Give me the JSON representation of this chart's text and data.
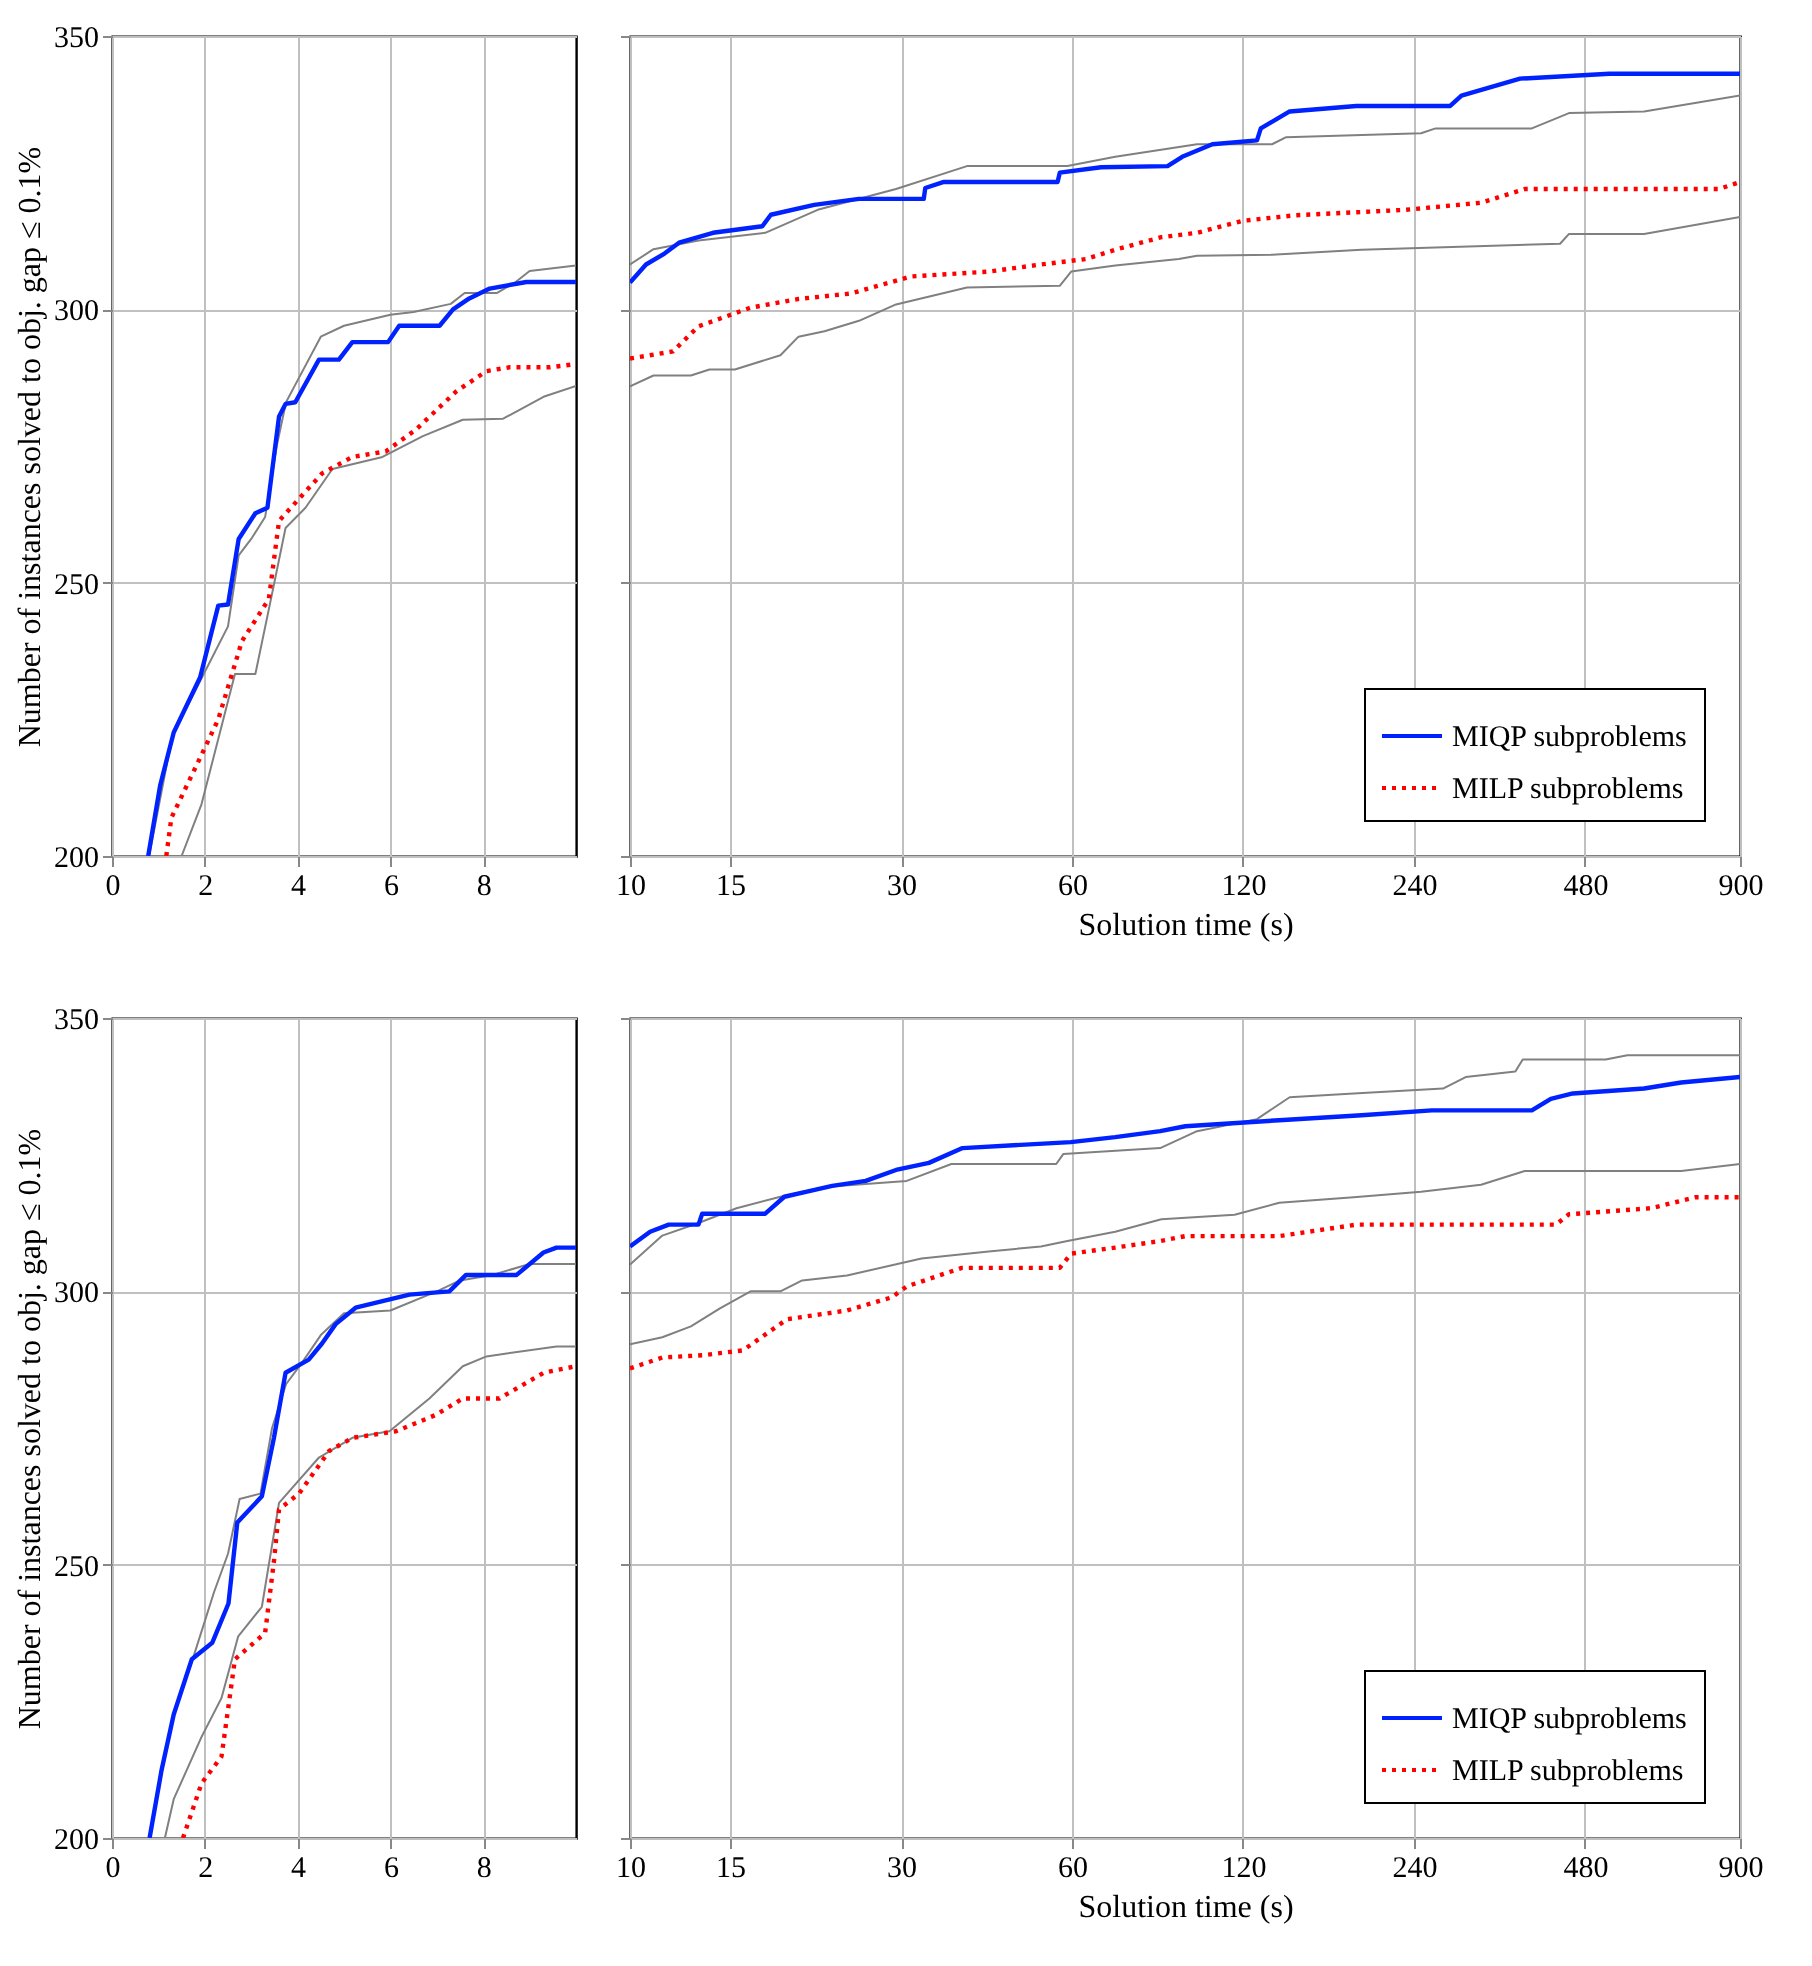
{
  "chart_data": [
    {
      "type": "line",
      "ylabel": "Number of instances solved to obj. gap ≤ 0.1%",
      "xlim": [
        0,
        10
      ],
      "xticks": [
        0,
        2,
        4,
        6,
        8
      ],
      "ylim": [
        200,
        350
      ],
      "yticks": [
        200,
        250,
        300,
        350
      ],
      "grid": true,
      "series": [
        {
          "color": "#808080",
          "line_style": "solid",
          "x": [
            0.8,
            1.3,
            1.9,
            2.5,
            2.73,
            3.0,
            3.3,
            3.55,
            3.75,
            4.0,
            4.5,
            5.0,
            5.5,
            6.0,
            6.5,
            7.3,
            7.6,
            8.3,
            8.7,
            9.0,
            10
          ],
          "values": [
            200,
            222,
            232,
            242,
            255,
            258,
            262,
            275,
            283,
            287,
            295,
            297,
            298,
            299,
            299.5,
            301,
            303,
            303,
            305,
            307,
            308
          ]
        },
        {
          "color": "#808080",
          "line_style": "solid",
          "x": [
            1.5,
            1.93,
            2.65,
            3.09,
            3.45,
            3.74,
            4.17,
            4.75,
            5.83,
            6.7,
            7.56,
            8.43,
            9.3,
            10
          ],
          "values": [
            200,
            209.5,
            233.3,
            233.3,
            248,
            260,
            263.7,
            270.8,
            273,
            276.8,
            279.8,
            280,
            284,
            286
          ]
        },
        {
          "color": "#0022ff",
          "line_style": "solid",
          "x": [
            0.78,
            1.04,
            1.33,
            1.9,
            2.29,
            2.5,
            2.73,
            3.09,
            3.35,
            3.6,
            3.74,
            3.95,
            4.46,
            4.89,
            5.18,
            5.95,
            6.19,
            7.06,
            7.35,
            7.7,
            8.14,
            8.93,
            10
          ],
          "values": [
            200,
            213,
            222.6,
            232.7,
            245.8,
            246,
            258,
            262.7,
            263.7,
            280.4,
            282.7,
            283,
            290.8,
            290.8,
            294,
            294,
            297,
            297,
            300,
            302,
            303.8,
            305,
            305
          ]
        },
        {
          "color": "#ff0000",
          "line_style": "dotted",
          "x": [
            1.17,
            1.28,
            1.93,
            2.29,
            2.8,
            3.38,
            3.6,
            4.1,
            4.53,
            5.18,
            5.9,
            6.55,
            7.42,
            8.07,
            8.57,
            9.44,
            10
          ],
          "values": [
            200,
            207,
            218.5,
            225,
            239.3,
            247,
            261.3,
            266,
            270,
            273,
            274,
            278,
            285,
            288.7,
            289.4,
            289.4,
            290
          ]
        }
      ]
    },
    {
      "type": "line",
      "xlabel": "Solution time (s)",
      "log": "x",
      "xlim": [
        10,
        900
      ],
      "xticks": [
        10,
        15,
        30,
        60,
        120,
        240,
        480,
        900
      ],
      "ylim": [
        200,
        350
      ],
      "yticks": [
        200,
        250,
        300,
        350
      ],
      "tick_labels": "x",
      "grid": true,
      "legend": "bottom right",
      "series": [
        {
          "color": "#808080",
          "line_style": "solid",
          "x": [
            10,
            11,
            13.2,
            17.3,
            21.4,
            29.4,
            39.2,
            58.9,
            71.5,
            99.6,
            135,
            143,
            247,
            262,
            387,
            450,
            610,
            900
          ],
          "values": [
            308.2,
            311,
            312.6,
            314,
            318.2,
            322,
            326.2,
            326.2,
            327.9,
            330.2,
            330.2,
            331.5,
            332.2,
            333.1,
            333.1,
            335.9,
            336.2,
            339.1
          ]
        },
        {
          "color": "#808080",
          "line_style": "solid",
          "x": [
            10,
            11,
            12.8,
            13.8,
            15.3,
            18.4,
            19.8,
            22,
            25.3,
            29.4,
            39.2,
            57.1,
            59.8,
            71.5,
            92.5,
            99.6,
            135,
            194,
            434,
            450,
            610,
            900
          ],
          "values": [
            285.9,
            287.9,
            287.9,
            289,
            289,
            291.6,
            295,
            296,
            297.9,
            300.9,
            304,
            304.3,
            306.9,
            308,
            309.2,
            309.8,
            310,
            310.9,
            312,
            313.8,
            313.8,
            316.9
          ]
        },
        {
          "name": "MIQP subproblems",
          "color": "#0022ff",
          "line_style": "solid",
          "x": [
            10,
            10.67,
            11.5,
            12.2,
            14,
            17.1,
            17.7,
            21.1,
            25.3,
            32.9,
            33.1,
            35.7,
            56.6,
            57.1,
            67.5,
            88.4,
            93.8,
            106,
            127,
            129,
            145,
            190,
            278,
            291,
            369,
            530,
            900
          ],
          "values": [
            304.9,
            308.2,
            310.2,
            312.2,
            314,
            315.2,
            317.3,
            319.1,
            320.2,
            320.2,
            322.2,
            323.3,
            323.3,
            325,
            326,
            326.2,
            327.9,
            330.2,
            330.9,
            333.1,
            336.2,
            337.2,
            337.2,
            339.1,
            342.2,
            343.1,
            343.1
          ]
        },
        {
          "name": "MILP subproblems",
          "color": "#ff0000",
          "line_style": "dotted",
          "x": [
            10,
            11.9,
            13.2,
            16.3,
            19.8,
            24.5,
            31.2,
            42.8,
            52.9,
            63.5,
            71.5,
            86.2,
            99.6,
            120,
            148,
            232,
            315,
            376,
            826,
            900
          ],
          "values": [
            291,
            292.3,
            296.9,
            300.3,
            301.9,
            302.9,
            306,
            306.9,
            308.2,
            309.2,
            310.9,
            313.2,
            314,
            316.2,
            317.2,
            318.2,
            319.5,
            322,
            322,
            323.3
          ]
        }
      ]
    },
    {
      "type": "line",
      "ylabel": "Number of instances solved to obj. gap ≤ 0.1%",
      "xlim": [
        0,
        10
      ],
      "xticks": [
        0,
        2,
        4,
        6,
        8
      ],
      "ylim": [
        200,
        350
      ],
      "yticks": [
        200,
        250,
        300,
        350
      ],
      "grid": true,
      "series": [
        {
          "color": "#808080",
          "line_style": "solid",
          "x": [
            0.8,
            1.3,
            1.75,
            2.2,
            2.5,
            2.75,
            3.2,
            3.45,
            3.75,
            4.1,
            4.5,
            5.0,
            6.0,
            7.0,
            7.5,
            8.2,
            9.0,
            10
          ],
          "values": [
            200,
            222,
            233,
            245,
            252,
            262,
            263,
            275,
            283,
            287,
            292,
            296,
            296.5,
            300,
            302,
            303,
            305,
            305
          ]
        },
        {
          "color": "#808080",
          "line_style": "solid",
          "x": [
            1.14,
            1.33,
            1.93,
            2.36,
            2.72,
            3.23,
            3.6,
            4.46,
            5.18,
            5.98,
            6.84,
            7.56,
            8.07,
            9.58,
            10
          ],
          "values": [
            200,
            207.1,
            218.5,
            225.6,
            236.9,
            242.3,
            261.3,
            269.6,
            273.2,
            274.4,
            280.4,
            286.3,
            288.1,
            289.9,
            289.9
          ]
        },
        {
          "color": "#0022ff",
          "line_style": "solid",
          "x": [
            0.81,
            1.07,
            1.33,
            1.72,
            2.16,
            2.51,
            2.7,
            3.23,
            3.49,
            3.74,
            4.24,
            4.53,
            4.82,
            5.25,
            5.83,
            6.41,
            7.27,
            7.63,
            8.72,
            9.3,
            9.58,
            10
          ],
          "values": [
            200,
            212.5,
            222.6,
            232.7,
            235.7,
            242.9,
            257.7,
            262.5,
            273.2,
            285.1,
            287.5,
            290.5,
            294,
            297,
            298.2,
            299.4,
            300,
            303,
            303,
            307.1,
            308,
            308
          ]
        },
        {
          "color": "#ff0000",
          "line_style": "dotted",
          "x": [
            1.53,
            1.93,
            2.36,
            2.65,
            3.3,
            3.49,
            3.6,
            4.03,
            4.68,
            5.18,
            6.12,
            6.98,
            7.56,
            8.35,
            9.3,
            10
          ],
          "values": [
            200,
            210,
            214.9,
            232.7,
            237.5,
            250.6,
            260.1,
            263,
            270.8,
            273.2,
            274.4,
            277.4,
            280.4,
            280.4,
            285.1,
            286.3
          ]
        }
      ]
    },
    {
      "type": "line",
      "xlabel": "Solution time (s)",
      "log": "x",
      "xlim": [
        10,
        900
      ],
      "xticks": [
        10,
        15,
        30,
        60,
        120,
        240,
        480,
        900
      ],
      "ylim": [
        200,
        350
      ],
      "yticks": [
        200,
        250,
        300,
        350
      ],
      "tick_labels": "x",
      "grid": true,
      "legend": "bottom right",
      "series": [
        {
          "color": "#808080",
          "line_style": "solid",
          "x": [
            10,
            11.4,
            13.2,
            15.4,
            18.4,
            22,
            30.7,
            36.8,
            56.3,
            57.9,
            85.8,
            99.6,
            127,
            145,
            188,
            270,
            296,
            362,
            373,
            522,
            570,
            900
          ],
          "values": [
            304.9,
            310.2,
            312.5,
            315.2,
            317.3,
            319.1,
            320.2,
            323.3,
            323.3,
            325.1,
            326.2,
            329.3,
            331.5,
            335.5,
            336.2,
            337.1,
            339.2,
            340.2,
            342.4,
            342.4,
            343.2,
            343.2
          ]
        },
        {
          "color": "#808080",
          "line_style": "solid",
          "x": [
            10,
            11.4,
            12.8,
            14.4,
            16.3,
            18.4,
            20.1,
            24.1,
            32.6,
            42.8,
            52.9,
            58.9,
            71.5,
            86.2,
            116,
            139,
            188,
            247,
            315,
            376,
            709,
            900
          ],
          "values": [
            290.3,
            291.6,
            293.6,
            296.9,
            300,
            300,
            302,
            302.9,
            306,
            307.3,
            308.2,
            309.2,
            310.9,
            313.2,
            314,
            316.2,
            317.2,
            318.2,
            319.5,
            322,
            322,
            323.3
          ]
        },
        {
          "name": "MIQP subproblems",
          "color": "#0022ff",
          "line_style": "solid",
          "x": [
            10,
            10.85,
            11.7,
            13.2,
            13.4,
            17.3,
            18.7,
            20.4,
            22.7,
            26,
            29.4,
            33.6,
            38.5,
            59.7,
            71.5,
            85.8,
            95,
            139,
            194,
            258,
            387,
            418,
            457,
            610,
            709,
            900
          ],
          "values": [
            308.2,
            310.9,
            312.2,
            312.2,
            314.2,
            314.2,
            317.3,
            318.2,
            319.3,
            320.2,
            322.2,
            323.5,
            326.2,
            327.3,
            328.2,
            329.3,
            330.2,
            331.3,
            332.2,
            333.1,
            333.1,
            335.2,
            336.2,
            337.1,
            338.2,
            339.2
          ]
        },
        {
          "name": "MILP subproblems",
          "color": "#ff0000",
          "line_style": "dotted",
          "x": [
            10,
            11.4,
            13.4,
            15.8,
            18.9,
            24.1,
            28.9,
            30.7,
            38.4,
            57.1,
            59.8,
            71.5,
            85.8,
            95,
            139,
            190,
            427,
            450,
            627,
            751,
            900
          ],
          "values": [
            285.9,
            287.9,
            288.3,
            289.2,
            294.9,
            296.5,
            298.9,
            300.9,
            304.3,
            304.3,
            306.9,
            308,
            309.2,
            310.1,
            310.1,
            312.2,
            312.2,
            314.1,
            315.2,
            317.2,
            317.2
          ]
        }
      ]
    }
  ]
}
